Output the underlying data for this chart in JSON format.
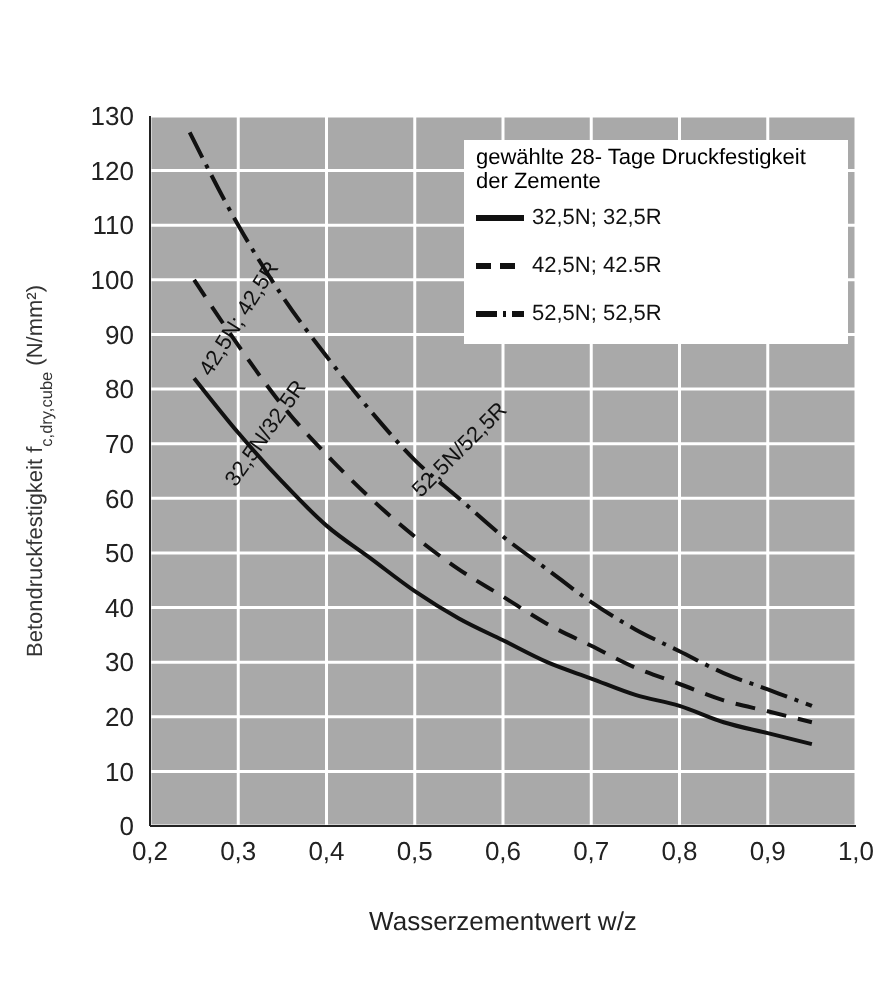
{
  "chart_data": {
    "type": "line",
    "xlabel": "Wasserzementwert w/z",
    "ylabel": "Betondruckfestigkeit f$_{c,dry,cube}$ (N/mm²)",
    "legend_title": "gewählte 28- Tage Druckfestigkeit der Zemente",
    "x": [
      0.25,
      0.3,
      0.35,
      0.4,
      0.45,
      0.5,
      0.55,
      0.6,
      0.65,
      0.7,
      0.75,
      0.8,
      0.85,
      0.9,
      0.95
    ],
    "series": [
      {
        "name": "52,5N; 52,5R",
        "color": "#111111",
        "line_style": "dashdot",
        "x": [
          0.245,
          0.3,
          0.35,
          0.4,
          0.45,
          0.5,
          0.55,
          0.6,
          0.65,
          0.7,
          0.75,
          0.8,
          0.85,
          0.9,
          0.95
        ],
        "values": [
          127,
          110,
          97,
          86,
          76,
          67,
          60,
          53,
          47,
          41,
          36,
          32,
          28,
          25,
          22
        ]
      },
      {
        "name": "42,5N; 42.5R",
        "color": "#111111",
        "line_style": "dashed",
        "values": [
          100,
          88,
          77,
          68,
          60,
          53,
          47,
          42,
          37,
          33,
          29,
          26,
          23,
          21,
          19
        ]
      },
      {
        "name": "32,5N; 32,5R",
        "color": "#111111",
        "line_style": "solid",
        "values": [
          82,
          72,
          63,
          55,
          49,
          43,
          38,
          34,
          30,
          27,
          24,
          22,
          19,
          17,
          15
        ]
      }
    ],
    "annotations": [
      "42,5N; 42,5R",
      "32,5N/32,5R",
      "52,5N/52,5R"
    ],
    "xlim": [
      0.2,
      1.0
    ],
    "xticks": [
      {
        "value": 0.2,
        "label": "0,2"
      },
      {
        "value": 0.3,
        "label": "0,3"
      },
      {
        "value": 0.4,
        "label": "0,4"
      },
      {
        "value": 0.5,
        "label": "0,5"
      },
      {
        "value": 0.6,
        "label": "0,6"
      },
      {
        "value": 0.7,
        "label": "0,7"
      },
      {
        "value": 0.8,
        "label": "0,8"
      },
      {
        "value": 0.9,
        "label": "0,9"
      },
      {
        "value": 1.0,
        "label": "1,0"
      }
    ],
    "ylim": [
      0,
      130
    ],
    "yticks": [
      0,
      10,
      20,
      30,
      40,
      50,
      60,
      70,
      80,
      90,
      100,
      110,
      120,
      130
    ],
    "grid": true,
    "legend": "top right",
    "marker": "none"
  }
}
